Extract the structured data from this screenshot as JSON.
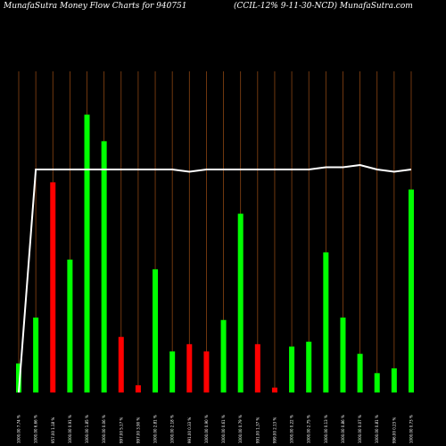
{
  "header": {
    "left_title": "MunafaSutra  Money Flow  Charts for 940751",
    "right_title": "(CCIL-12% 9-11-30-NCD) MunafaSutra.com"
  },
  "chart_data": {
    "type": "bar",
    "colors": {
      "up": "#00ff00",
      "down": "#ff0000",
      "line": "#ffffff",
      "grid": "#8b4513",
      "background": "#000000"
    },
    "categories": [
      "1000.00 7.74 %",
      "1000.00 6.66 %",
      "957.00 1.18 %",
      "1000.00 0.91 %",
      "1000.00 1.85 %",
      "1000.00 0.06 %",
      "997.00 5.17 %",
      "997.00 3.90 %",
      "1000.00 2.81 %",
      "1000.00 2.18 %",
      "991.00 0.33 %",
      "1000.00 0.90 %",
      "1000.00 0.61 %",
      "1000.00 0.79 %",
      "991.00 1.37 %",
      "999.00 2.13 %",
      "1000.00 0.22 %",
      "1000.00 2.75 %",
      "1000.00 0.13 %",
      "1000.00 0.86 %",
      "1000.00 0.07 %",
      "1000.00 0.81 %",
      "996.00 0.23 %",
      "1000.00 0.73 %"
    ],
    "values": [
      12,
      31,
      87,
      55,
      115,
      104,
      23,
      3,
      51,
      17,
      20,
      17,
      30,
      74,
      20,
      2,
      19,
      21,
      58,
      31,
      16,
      8,
      10,
      84
    ],
    "directions": [
      "up",
      "up",
      "down",
      "up",
      "up",
      "up",
      "down",
      "down",
      "up",
      "up",
      "down",
      "down",
      "up",
      "up",
      "down",
      "down",
      "up",
      "up",
      "up",
      "up",
      "up",
      "up",
      "up",
      "up"
    ],
    "line_values": [
      0,
      100,
      100,
      100,
      100,
      100,
      100,
      100,
      100,
      100,
      99,
      100,
      100,
      100,
      100,
      100,
      100,
      100,
      101,
      101,
      102,
      100,
      99,
      100
    ],
    "ylim": [
      0,
      120
    ],
    "line_ylim": [
      0,
      160
    ],
    "grid": true
  }
}
